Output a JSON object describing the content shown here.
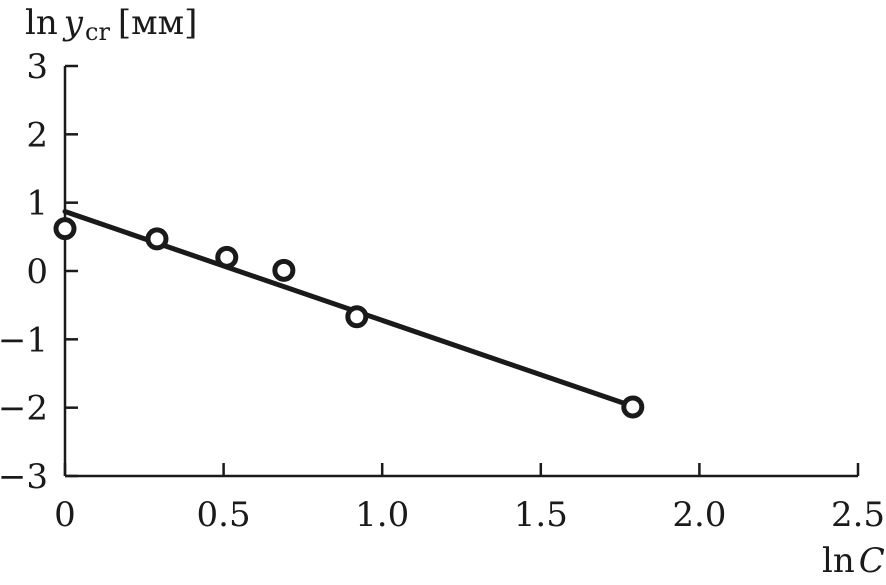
{
  "chart_data": {
    "type": "scatter",
    "title": "",
    "xlabel": {
      "prefix": "ln",
      "variable": "C"
    },
    "ylabel": {
      "prefix": "ln",
      "variable": "y",
      "subscript": "cr",
      "unit": "[мм]"
    },
    "xlim": [
      0,
      2.5
    ],
    "ylim": [
      -3,
      3
    ],
    "x_ticks": [
      0,
      0.5,
      1.0,
      1.5,
      2.0,
      2.5
    ],
    "x_tick_labels": [
      "0",
      "0.5",
      "1.0",
      "1.5",
      "2.0",
      "2.5"
    ],
    "y_ticks": [
      -3,
      -2,
      -1,
      0,
      1,
      2,
      3
    ],
    "y_tick_labels": [
      "−3",
      "−2",
      "−1",
      "0",
      "1",
      "2",
      "3"
    ],
    "grid": false,
    "series": [
      {
        "marker": "open-circle",
        "x": [
          0.0,
          0.29,
          0.51,
          0.69,
          0.92,
          1.79
        ],
        "y": [
          0.62,
          0.47,
          0.2,
          0.01,
          -0.67,
          -1.99
        ]
      }
    ],
    "fit_line": {
      "x": [
        0.0,
        1.79
      ],
      "y": [
        0.87,
        -1.98
      ]
    },
    "colors": {
      "ink": "#1a1a1a",
      "background": "#ffffff"
    }
  }
}
